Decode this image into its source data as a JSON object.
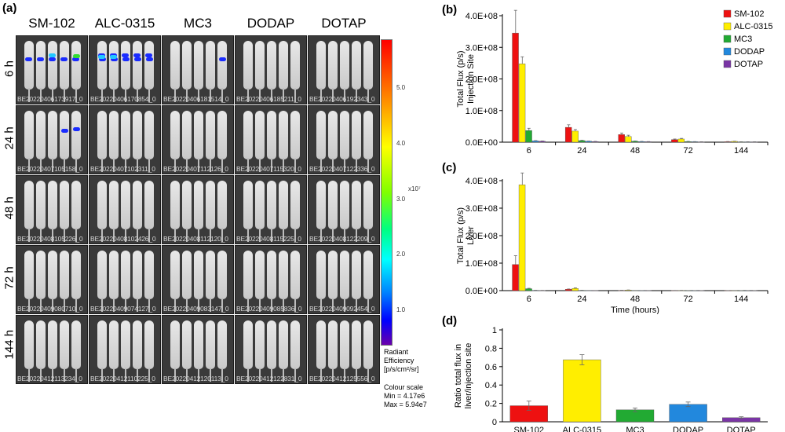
{
  "panels": {
    "a": "(a)",
    "b": "(b)",
    "c": "(c)",
    "d": "(d)"
  },
  "image_grid": {
    "columns": [
      "SM-102",
      "ALC-0315",
      "MC3",
      "DODAP",
      "DOTAP"
    ],
    "rows": [
      "6 h",
      "24 h",
      "48 h",
      "72 h",
      "144 h"
    ],
    "captions": [
      [
        "BE20220406173917_0",
        "BE20220406170854_0",
        "BE20220406181514_0",
        "BE20220406185211_0",
        "BE20220406192343_0"
      ],
      [
        "BE20220407105158_0",
        "BE20220407102311_0",
        "BE20220407112126_0",
        "BE20220407115320_0",
        "BE20220407122336_0"
      ],
      [
        "BE20220408105226_0",
        "BE20220408102426_0",
        "BE20220408112120_0",
        "BE20220408115225_0",
        "BE20220408122209_0"
      ],
      [
        "BE20220409080710_0",
        "BE20220409074127_0",
        "BE20220409083147_0",
        "BE20220409085836_0",
        "BE20220409092454_0"
      ],
      [
        "BE20220412113234_0",
        "BE20220412110225_0",
        "BE20220412120113_0",
        "BE20220412122831_0",
        "BE20220412125556_0"
      ]
    ]
  },
  "colorbar": {
    "ticks": [
      "5.0",
      "4.0",
      "3.0",
      "2.0",
      "1.0"
    ],
    "exponent": "x10⁷",
    "label_lines": [
      "Radiant",
      "Efficiency",
      "[p/s/cm²/sr]"
    ],
    "scale_lines": [
      "Colour scale",
      "Min = 4.17e6",
      "Max = 5.94e7"
    ]
  },
  "colors": {
    "SM-102": "#ee1111",
    "ALC-0315": "#ffee00",
    "MC3": "#22aa33",
    "DODAP": "#2288dd",
    "DOTAP": "#7a35a5",
    "signal_blue": "#1a2cff",
    "signal_cyan": "#22c8ff",
    "signal_green": "#33dd33"
  },
  "chart_data": [
    {
      "id": "b",
      "type": "bar",
      "categories": [
        "6",
        "24",
        "48",
        "72",
        "144"
      ],
      "xlabel": "Time (hours)",
      "ylabel_lines": [
        "Total Flux (p/s)",
        "Injection Site"
      ],
      "ylim": [
        0,
        400000000
      ],
      "yticks": [
        "0.0E+00",
        "1.0E+08",
        "2.0E+08",
        "3.0E+08",
        "4.0E+08"
      ],
      "series": [
        {
          "name": "SM-102",
          "values": [
            345000000,
            47000000,
            24000000,
            8000000,
            1500000
          ],
          "errors": [
            72000000,
            8000000,
            5000000,
            2000000,
            500000
          ]
        },
        {
          "name": "ALC-0315",
          "values": [
            248000000,
            35000000,
            18000000,
            10000000,
            2500000
          ],
          "errors": [
            22000000,
            5000000,
            4000000,
            2000000,
            500000
          ]
        },
        {
          "name": "MC3",
          "values": [
            37000000,
            5000000,
            3000000,
            2000000,
            1000000
          ],
          "errors": [
            7000000,
            1000000,
            800000,
            500000,
            300000
          ]
        },
        {
          "name": "DODAP",
          "values": [
            4000000,
            3000000,
            2000000,
            1500000,
            1000000
          ],
          "errors": [
            1000000,
            500000,
            500000,
            300000,
            200000
          ]
        },
        {
          "name": "DOTAP",
          "values": [
            3000000,
            2000000,
            1500000,
            1000000,
            1000000
          ],
          "errors": [
            800000,
            500000,
            400000,
            300000,
            200000
          ]
        }
      ],
      "legend": "top-right"
    },
    {
      "id": "c",
      "type": "bar",
      "categories": [
        "6",
        "24",
        "48",
        "72",
        "144"
      ],
      "xlabel": "Time (hours)",
      "ylabel_lines": [
        "Total Flux (p/s)",
        "Liver"
      ],
      "ylim": [
        0,
        400000000
      ],
      "yticks": [
        "0.0E+00",
        "1.0E+08",
        "2.0E+08",
        "3.0E+08",
        "4.0E+08"
      ],
      "series": [
        {
          "name": "SM-102",
          "values": [
            95000000,
            5000000,
            1000000,
            500000,
            300000
          ],
          "errors": [
            32000000,
            1000000,
            300000,
            200000,
            100000
          ]
        },
        {
          "name": "ALC-0315",
          "values": [
            385000000,
            8000000,
            2000000,
            800000,
            400000
          ],
          "errors": [
            43000000,
            2000000,
            500000,
            200000,
            100000
          ]
        },
        {
          "name": "MC3",
          "values": [
            7000000,
            1000000,
            500000,
            300000,
            200000
          ],
          "errors": [
            1500000,
            300000,
            100000,
            100000,
            50000
          ]
        },
        {
          "name": "DODAP",
          "values": [
            1000000,
            500000,
            300000,
            200000,
            100000
          ],
          "errors": [
            300000,
            100000,
            100000,
            50000,
            50000
          ]
        },
        {
          "name": "DOTAP",
          "values": [
            800000,
            400000,
            300000,
            200000,
            100000
          ],
          "errors": [
            200000,
            100000,
            100000,
            50000,
            50000
          ]
        }
      ]
    },
    {
      "id": "d",
      "type": "bar",
      "categories": [
        "SM-102",
        "ALC-0315",
        "MC3",
        "DODAP",
        "DOTAP"
      ],
      "values": [
        0.175,
        0.675,
        0.13,
        0.19,
        0.045
      ],
      "errors": [
        0.05,
        0.055,
        0.02,
        0.025,
        0.01
      ],
      "ylabel_lines": [
        "Ratio total flux in",
        "liver/injection site"
      ],
      "ylim": [
        0,
        1
      ],
      "yticks": [
        "0",
        "0.2",
        "0.4",
        "0.6",
        "0.8",
        "1"
      ]
    }
  ]
}
